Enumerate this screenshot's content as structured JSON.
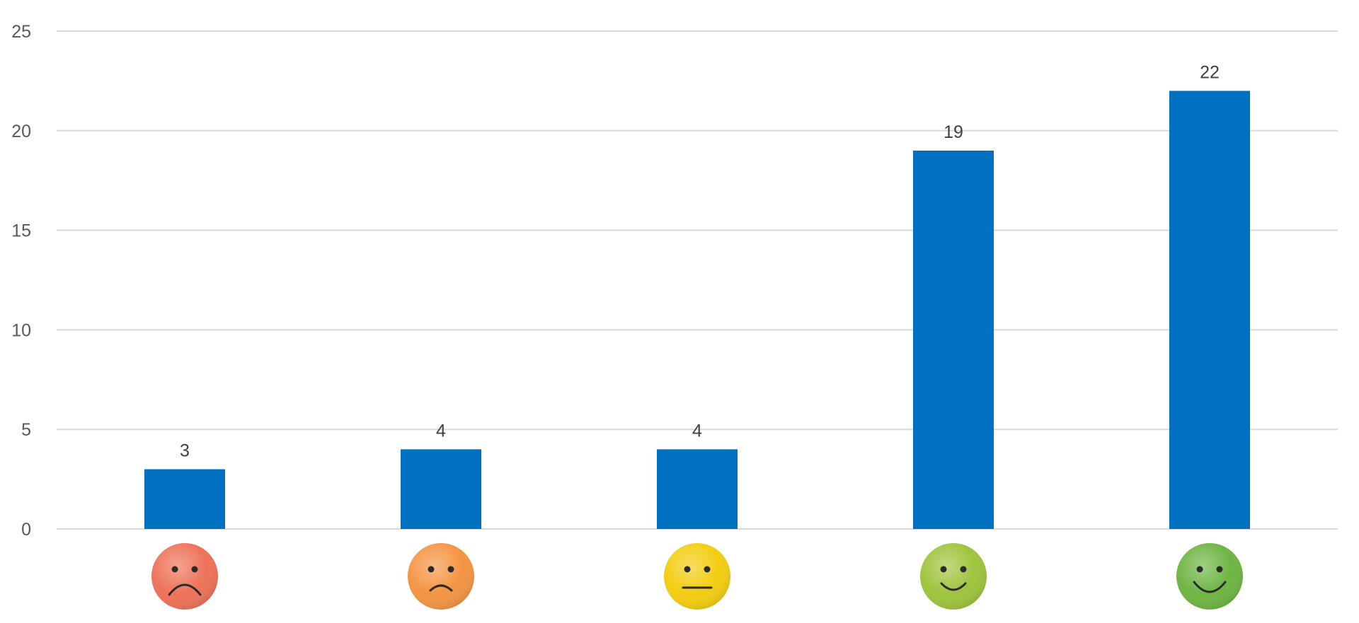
{
  "chart_data": {
    "type": "bar",
    "categories": [
      "very-unsatisfied",
      "unsatisfied",
      "neutral",
      "satisfied",
      "very-satisfied"
    ],
    "category_icons": [
      {
        "name": "very-sad-face-icon",
        "color": "#ee7359",
        "mood": "very-sad"
      },
      {
        "name": "sad-face-icon",
        "color": "#f49544",
        "mood": "sad"
      },
      {
        "name": "neutral-face-icon",
        "color": "#f3cd12",
        "mood": "neutral"
      },
      {
        "name": "smile-face-icon",
        "color": "#9fc43e",
        "mood": "happy"
      },
      {
        "name": "big-smile-face-icon",
        "color": "#6fb544",
        "mood": "very-happy"
      }
    ],
    "values": [
      3,
      4,
      4,
      19,
      22
    ],
    "data_labels": [
      "3",
      "4",
      "4",
      "19",
      "22"
    ],
    "ylim": [
      0,
      25
    ],
    "yticks": [
      0,
      5,
      10,
      15,
      20,
      25
    ],
    "ytick_labels": [
      "0",
      "5",
      "10",
      "15",
      "20",
      "25"
    ],
    "title": "",
    "xlabel": "",
    "ylabel": "",
    "grid": true,
    "legend": "none",
    "bar_color": "#0070c0"
  }
}
